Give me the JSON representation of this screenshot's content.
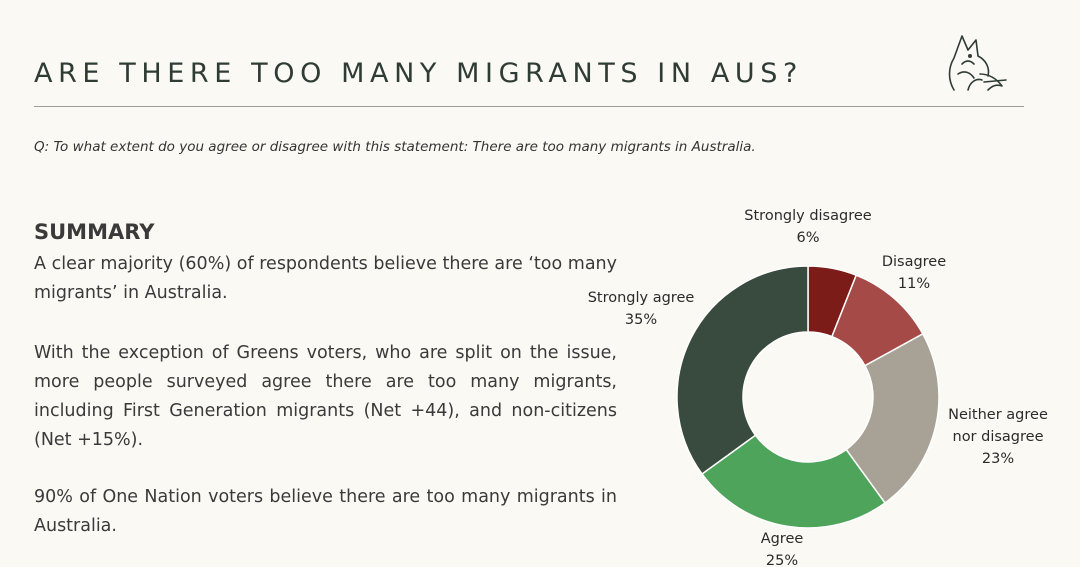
{
  "header": {
    "title": "ARE THERE TOO MANY MIGRANTS IN AUS?",
    "logo_icon": "fox-logo-icon"
  },
  "question": "Q: To what extent do you agree or disagree with this statement: There are too many migrants in Australia.",
  "summary": {
    "heading": "SUMMARY",
    "paragraphs": [
      "A clear majority (60%) of respondents believe there are ‘too many migrants’ in Australia.",
      "With the exception of Greens voters, who are split on the issue, more people surveyed agree there are too many migrants, including First Generation migrants (Net +44), and non-citizens (Net +15%).",
      "90% of One Nation voters believe there are too many migrants in Australia."
    ]
  },
  "chart_data": {
    "type": "pie",
    "donut": true,
    "title": "",
    "slices": [
      {
        "label": "Strongly disagree",
        "value": 6,
        "display": "6%",
        "color": "#7b1c18"
      },
      {
        "label": "Disagree",
        "value": 11,
        "display": "11%",
        "color": "#a64a47"
      },
      {
        "label": "Neither agree nor disagree",
        "label_lines": [
          "Neither agree",
          "nor disagree"
        ],
        "value": 23,
        "display": "23%",
        "color": "#a7a196"
      },
      {
        "label": "Agree",
        "value": 25,
        "display": "25%",
        "color": "#4fa45b"
      },
      {
        "label": "Strongly agree",
        "value": 35,
        "display": "35%",
        "color": "#394a3f"
      }
    ]
  }
}
